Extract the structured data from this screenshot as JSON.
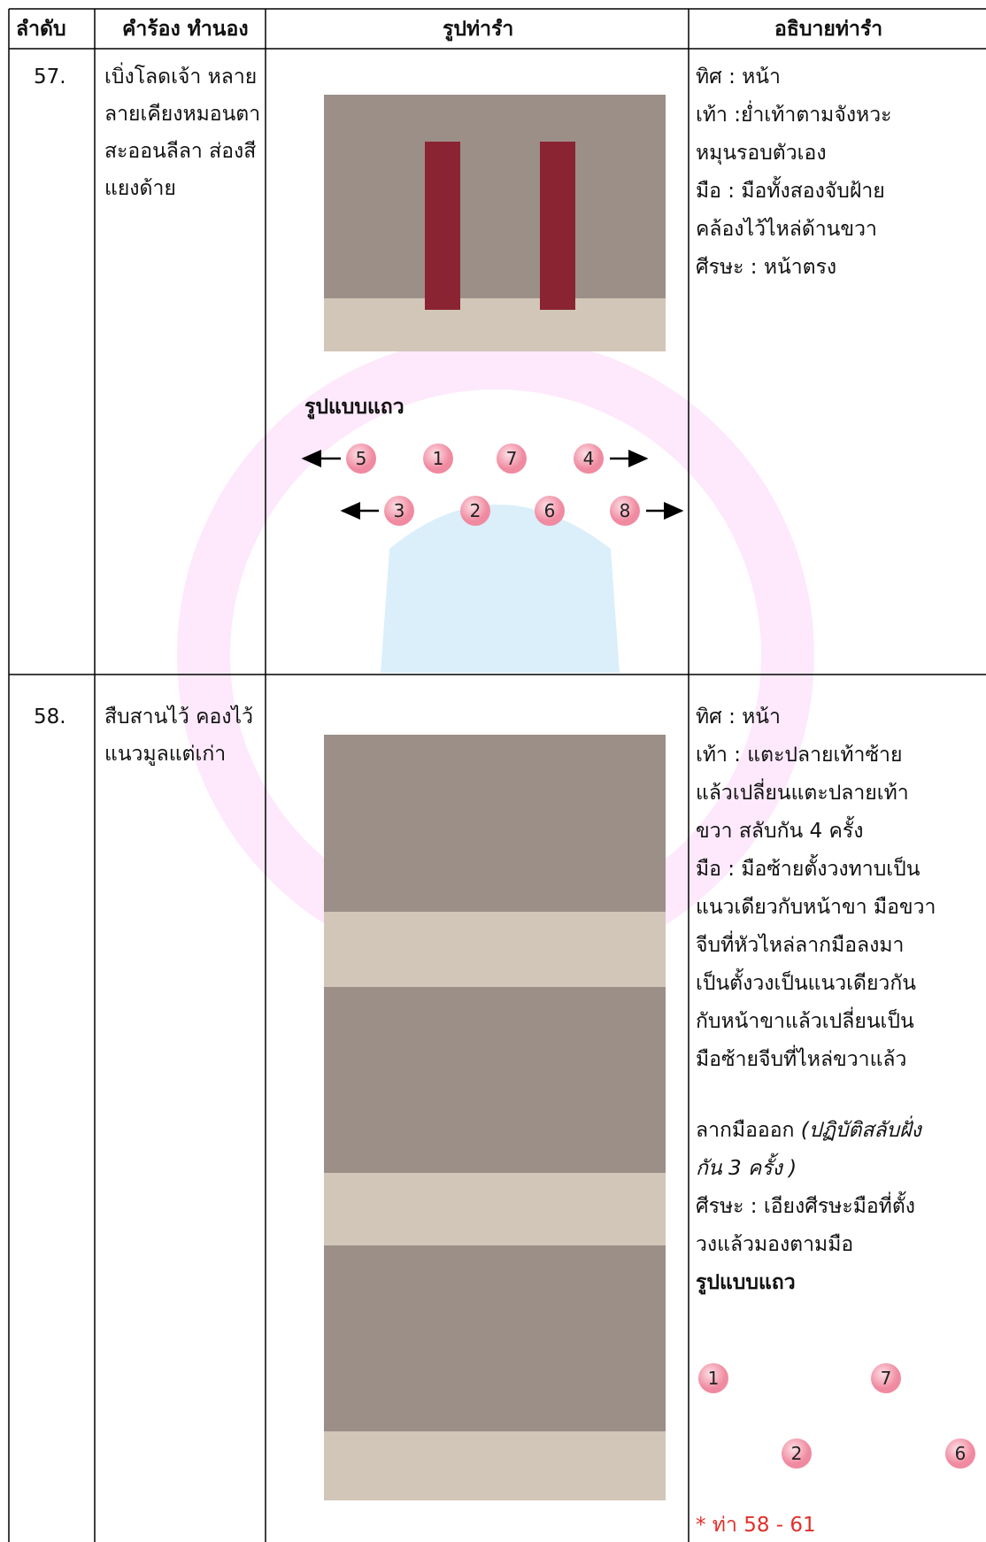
{
  "table": {
    "header": [
      "ลำดับ",
      "คำร้อง ทำนอง",
      "รูปท่ารำ",
      "อธิบายท่ารำ"
    ],
    "rows": [
      {
        "number": "57.",
        "lyrics": [
          "เบิ่งโลดเจ้า หลาย",
          "ลายเคียงหมอนตา",
          "สะออนลีลา ส่องสี",
          "แยงด้าย"
        ],
        "formation_title": "รูปแบบแถว",
        "formation": [
          "5",
          "1",
          "7",
          "4",
          "3",
          "2",
          "6",
          "8"
        ],
        "description": [
          "ทิศ : หน้า",
          "เท้า :ย่ำเท้าตามจังหวะ",
          "หมุนรอบตัวเอง",
          "มือ : มือทั้งสองจับฝ้าย",
          "คล้องไว้ไหล่ด้านขวา",
          "ศีรษะ : หน้าตรง"
        ]
      },
      {
        "number": "58.",
        "lyrics": [
          "สืบสานไว้ คองไว้",
          "แนวมูลแต่เก่า"
        ],
        "description": [
          "ทิศ : หน้า",
          "เท้า : แตะปลายเท้าซ้าย",
          "แล้วเปลี่ยนแตะปลายเท้า",
          "ขวา สลับกัน 4 ครั้ง",
          "มือ : มือซ้ายตั้งวงทาบเป็น",
          "แนวเดียวกับหน้าขา มือขวา",
          "จีบที่หัวไหล่ลากมือลงมา",
          "เป็นตั้งวงเป็นแนวเดียวกัน",
          "กับหน้าขาแล้วเปลี่ยนเป็น",
          "มือซ้ายจีบที่ไหล่ขวาแล้ว",
          "ลากมือออก ",
          "(ปฏิบัติสลับฝั่ง",
          "กัน 3 ครั้ง )",
          "ศีรษะ : เอียงศีรษะมือที่ตั้ง",
          "วงแล้วมองตามมือ"
        ],
        "formation_title": "รูปแบบแถว",
        "formation": [
          "1",
          "7",
          "2",
          "6"
        ],
        "note": "* ท่า 58 - 61"
      }
    ]
  }
}
